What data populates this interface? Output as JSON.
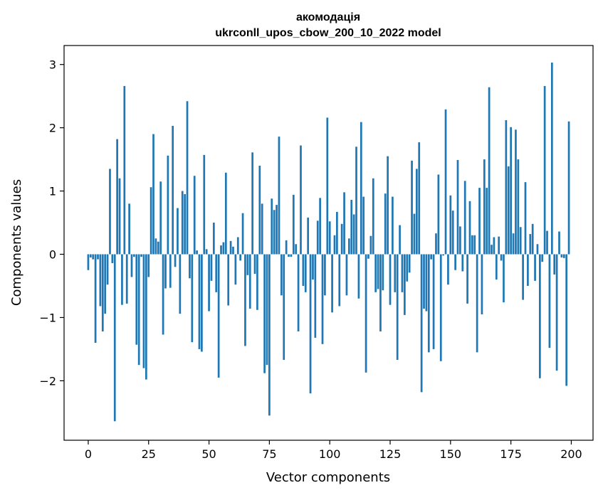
{
  "chart_data": {
    "type": "bar",
    "title": "акомодація",
    "subtitle": "ukrconll_upos_cbow_200_10_2022 model",
    "xlabel": "Vector components",
    "ylabel": "Components values",
    "xlim": [
      -10,
      209
    ],
    "ylim": [
      -2.94,
      3.3
    ],
    "xticks": [
      0,
      25,
      50,
      75,
      100,
      125,
      150,
      175,
      200
    ],
    "yticks": [
      -2,
      -1,
      0,
      1,
      2,
      3
    ],
    "ytick_labels": [
      "−2",
      "−1",
      "0",
      "1",
      "2",
      "3"
    ],
    "grid": false,
    "bar_color": "#1f77b4",
    "x": [
      0,
      1,
      2,
      3,
      4,
      5,
      6,
      7,
      8,
      9,
      10,
      11,
      12,
      13,
      14,
      15,
      16,
      17,
      18,
      19,
      20,
      21,
      22,
      23,
      24,
      25,
      26,
      27,
      28,
      29,
      30,
      31,
      32,
      33,
      34,
      35,
      36,
      37,
      38,
      39,
      40,
      41,
      42,
      43,
      44,
      45,
      46,
      47,
      48,
      49,
      50,
      51,
      52,
      53,
      54,
      55,
      56,
      57,
      58,
      59,
      60,
      61,
      62,
      63,
      64,
      65,
      66,
      67,
      68,
      69,
      70,
      71,
      72,
      73,
      74,
      75,
      76,
      77,
      78,
      79,
      80,
      81,
      82,
      83,
      84,
      85,
      86,
      87,
      88,
      89,
      90,
      91,
      92,
      93,
      94,
      95,
      96,
      97,
      98,
      99,
      100,
      101,
      102,
      103,
      104,
      105,
      106,
      107,
      108,
      109,
      110,
      111,
      112,
      113,
      114,
      115,
      116,
      117,
      118,
      119,
      120,
      121,
      122,
      123,
      124,
      125,
      126,
      127,
      128,
      129,
      130,
      131,
      132,
      133,
      134,
      135,
      136,
      137,
      138,
      139,
      140,
      141,
      142,
      143,
      144,
      145,
      146,
      147,
      148,
      149,
      150,
      151,
      152,
      153,
      154,
      155,
      156,
      157,
      158,
      159,
      160,
      161,
      162,
      163,
      164,
      165,
      166,
      167,
      168,
      169,
      170,
      171,
      172,
      173,
      174,
      175,
      176,
      177,
      178,
      179,
      180,
      181,
      182,
      183,
      184,
      185,
      186,
      187,
      188,
      189,
      190,
      191,
      192,
      193,
      194,
      195,
      196,
      197,
      198,
      199
    ],
    "values": [
      -0.25,
      -0.05,
      -0.08,
      -1.4,
      -0.08,
      -0.82,
      -1.22,
      -0.94,
      -0.48,
      1.35,
      -0.14,
      -2.64,
      1.82,
      1.2,
      -0.8,
      2.66,
      -0.78,
      0.8,
      -0.36,
      -0.04,
      -1.43,
      -1.75,
      -0.04,
      -1.8,
      -1.98,
      -0.36,
      1.06,
      1.9,
      0.25,
      0.2,
      1.15,
      -1.27,
      -0.54,
      1.56,
      -0.53,
      2.03,
      -0.2,
      0.73,
      -0.94,
      1.0,
      0.95,
      2.42,
      -0.38,
      -1.39,
      1.24,
      0.06,
      -1.5,
      -1.54,
      1.57,
      0.08,
      -0.9,
      -0.42,
      0.5,
      -0.6,
      -1.95,
      0.14,
      0.19,
      1.29,
      -0.81,
      0.21,
      0.12,
      -0.48,
      0.27,
      -0.1,
      0.65,
      -1.45,
      -0.33,
      -0.86,
      1.61,
      -0.31,
      -0.88,
      1.4,
      0.8,
      -1.88,
      -1.75,
      -2.55,
      0.88,
      0.7,
      0.78,
      1.86,
      -0.65,
      -1.67,
      0.22,
      -0.04,
      -0.04,
      0.94,
      0.16,
      -1.22,
      1.72,
      -0.5,
      -0.6,
      0.58,
      -2.2,
      -0.4,
      -1.32,
      0.53,
      0.89,
      -1.42,
      -0.65,
      2.16,
      0.52,
      -0.92,
      0.3,
      0.67,
      -0.82,
      0.48,
      0.98,
      -0.65,
      0.25,
      0.86,
      0.63,
      1.7,
      -0.7,
      2.09,
      0.91,
      -1.87,
      -0.07,
      0.29,
      1.2,
      -0.6,
      -0.55,
      -1.22,
      -0.57,
      0.96,
      1.55,
      -0.8,
      0.91,
      -0.6,
      -1.67,
      0.46,
      -0.6,
      -0.96,
      -0.43,
      -0.29,
      1.48,
      0.64,
      1.35,
      1.77,
      -2.18,
      -0.86,
      -0.9,
      -1.55,
      -0.08,
      -1.5,
      0.33,
      1.26,
      -1.69,
      -0.02,
      2.29,
      -0.48,
      0.93,
      0.69,
      -0.25,
      1.49,
      0.44,
      -0.27,
      1.16,
      -0.78,
      0.84,
      0.3,
      0.3,
      -1.55,
      1.05,
      -0.95,
      1.5,
      1.05,
      2.64,
      0.15,
      0.27,
      -0.4,
      0.28,
      -0.1,
      -0.76,
      2.12,
      1.39,
      2.01,
      0.33,
      1.97,
      1.5,
      0.43,
      -0.72,
      1.14,
      -0.5,
      0.32,
      0.48,
      -0.42,
      0.16,
      -1.96,
      -0.12,
      2.66,
      0.37,
      -1.48,
      3.03,
      -0.32,
      -1.84,
      0.36,
      -0.05,
      -0.06,
      -2.08,
      2.1
    ]
  }
}
